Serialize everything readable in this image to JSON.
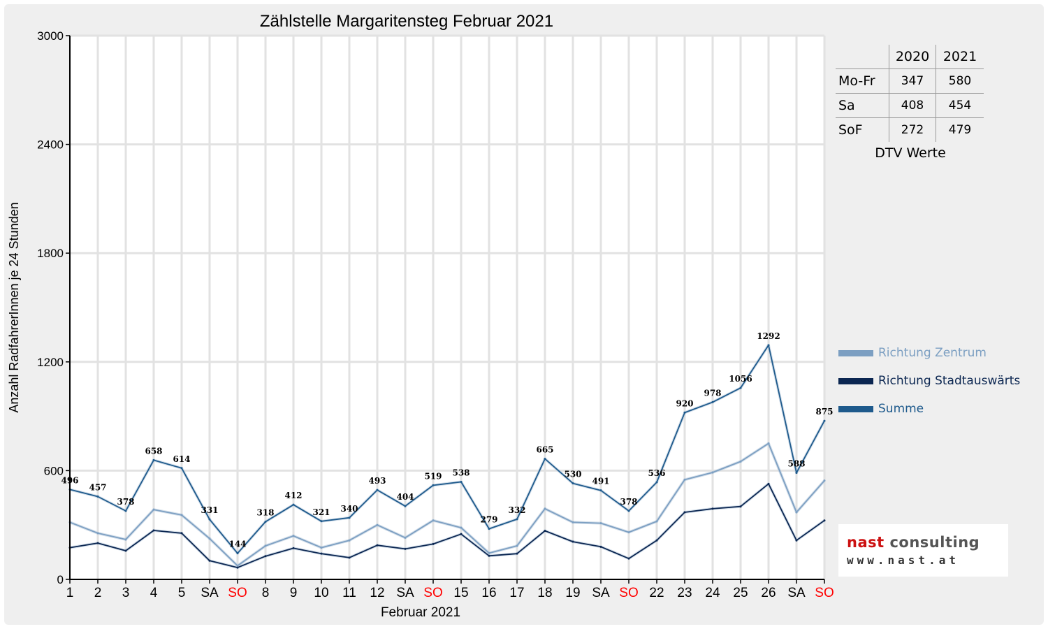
{
  "chart_data": {
    "type": "line",
    "title": "Zählstelle Margaritensteg Februar 2021",
    "xlabel": "Februar 2021",
    "ylabel": "Anzahl RadfahrerInnen je 24 Stunden",
    "ylim": [
      0,
      3000
    ],
    "yticks": [
      0,
      600,
      1200,
      1800,
      2400,
      3000
    ],
    "grid": true,
    "legend_position": "right",
    "categories": [
      "1",
      "2",
      "3",
      "4",
      "5",
      "SA",
      "SO",
      "8",
      "9",
      "10",
      "11",
      "12",
      "SA",
      "SO",
      "15",
      "16",
      "17",
      "18",
      "19",
      "SA",
      "SO",
      "22",
      "23",
      "24",
      "25",
      "26",
      "SA",
      "SO"
    ],
    "red_categories": [
      6,
      13,
      20,
      27
    ],
    "series": [
      {
        "name": "Richtung Zentrum",
        "color": "#7c9fc2",
        "values": [
          315,
          255,
          220,
          385,
          355,
          225,
          75,
          185,
          240,
          175,
          215,
          300,
          230,
          325,
          285,
          145,
          185,
          390,
          315,
          310,
          260,
          320,
          550,
          590,
          650,
          750,
          370,
          545
        ]
      },
      {
        "name": "Richtung Stadtauswärts",
        "color": "#0b2651",
        "values": [
          175,
          200,
          158,
          270,
          255,
          103,
          65,
          128,
          172,
          142,
          120,
          188,
          168,
          195,
          250,
          130,
          142,
          268,
          208,
          180,
          115,
          215,
          370,
          390,
          402,
          527,
          215,
          325
        ]
      },
      {
        "name": "Summe",
        "color": "#1e5a8c",
        "values": [
          496,
          457,
          378,
          658,
          614,
          331,
          144,
          318,
          412,
          321,
          340,
          493,
          404,
          519,
          538,
          279,
          332,
          665,
          530,
          491,
          378,
          536,
          920,
          978,
          1056,
          1292,
          588,
          875
        ],
        "labels": [
          "496",
          "457",
          "378",
          "658",
          "614",
          "331",
          "144",
          "318",
          "412",
          "321",
          "340",
          "493",
          "404",
          "519",
          "538",
          "279",
          "332",
          "665",
          "530",
          "491",
          "378",
          "536",
          "920",
          "978",
          "1056",
          "1292",
          "588",
          "875"
        ]
      }
    ]
  },
  "dtv_table": {
    "headers": [
      "",
      "2020",
      "2021"
    ],
    "rows": [
      {
        "label": "Mo-Fr",
        "v2020": "347",
        "v2021": "580"
      },
      {
        "label": "Sa",
        "v2020": "408",
        "v2021": "454"
      },
      {
        "label": "SoF",
        "v2020": "272",
        "v2021": "479"
      }
    ],
    "caption": "DTV Werte"
  },
  "logo": {
    "brand_part1": "nast",
    "brand_part2": "consulting",
    "url": "www.nast.at"
  },
  "colors": {
    "sunday_label": "#ff0000",
    "grid": "#e2e2e2"
  }
}
